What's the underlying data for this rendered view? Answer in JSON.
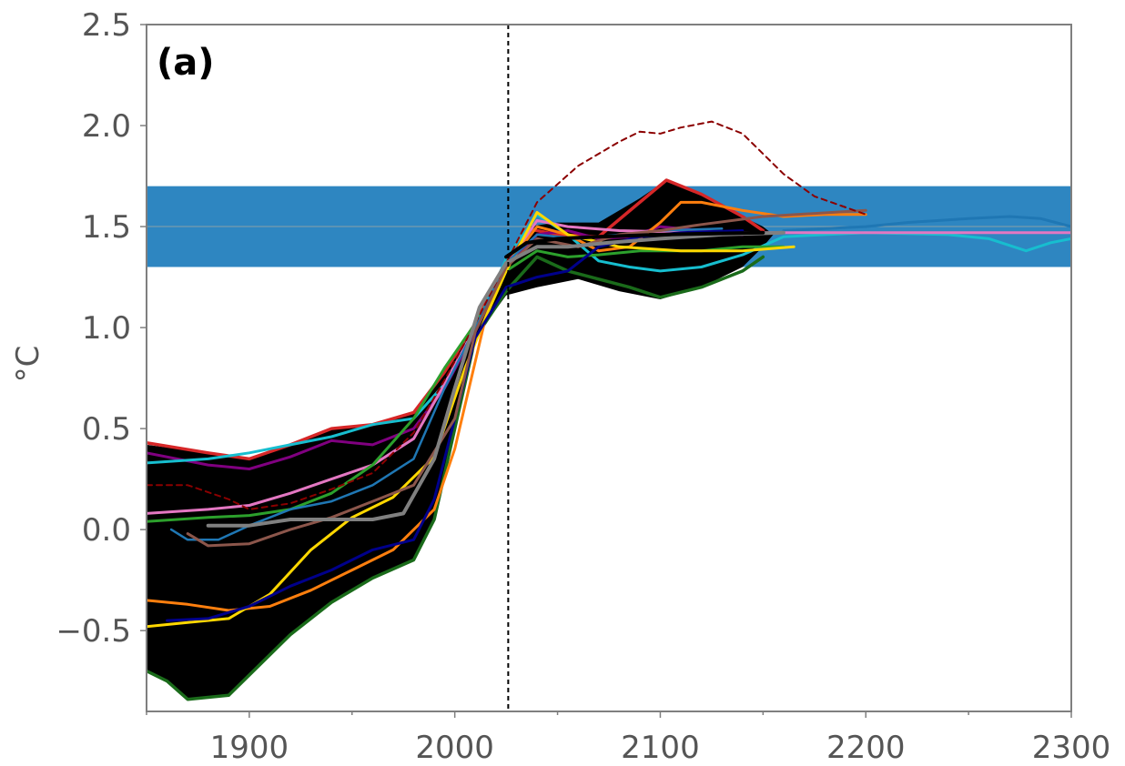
{
  "chart_data": {
    "type": "line",
    "panel_label": "(a)",
    "ylabel": "°C",
    "xlabel": "",
    "right_axis_fragment": "°C",
    "xlim": [
      1850,
      2300
    ],
    "ylim": [
      -0.9,
      2.5
    ],
    "x_ticks": [
      1900,
      2000,
      2100,
      2200,
      2300
    ],
    "x_tick_labels": [
      "1900",
      "2000",
      "2100",
      "2200",
      "2300"
    ],
    "y_ticks": [
      -0.5,
      0.0,
      0.5,
      1.0,
      1.5,
      2.0,
      2.5
    ],
    "y_tick_labels": [
      "−0.5",
      "0.0",
      "0.5",
      "1.0",
      "1.5",
      "2.0",
      "2.5"
    ],
    "grid": false,
    "target_band": {
      "ymin": 1.3,
      "ymax": 1.7,
      "center": 1.5,
      "color": "#2e86c1"
    },
    "vertical_marker_x": 2026,
    "envelope": {
      "color": "#000000",
      "upper": [
        [
          1850,
          0.42
        ],
        [
          1880,
          0.38
        ],
        [
          1900,
          0.35
        ],
        [
          1920,
          0.42
        ],
        [
          1940,
          0.5
        ],
        [
          1960,
          0.52
        ],
        [
          1980,
          0.58
        ],
        [
          1995,
          0.78
        ],
        [
          2010,
          1.02
        ],
        [
          2025,
          1.32
        ],
        [
          2035,
          1.5
        ],
        [
          2050,
          1.52
        ],
        [
          2070,
          1.52
        ],
        [
          2090,
          1.64
        ],
        [
          2103,
          1.73
        ],
        [
          2120,
          1.66
        ],
        [
          2140,
          1.55
        ],
        [
          2150,
          1.5
        ],
        [
          2155,
          1.46
        ]
      ],
      "lower": [
        [
          1850,
          -0.7
        ],
        [
          1860,
          -0.75
        ],
        [
          1870,
          -0.84
        ],
        [
          1890,
          -0.82
        ],
        [
          1900,
          -0.72
        ],
        [
          1920,
          -0.52
        ],
        [
          1940,
          -0.36
        ],
        [
          1960,
          -0.24
        ],
        [
          1980,
          -0.15
        ],
        [
          1990,
          0.05
        ],
        [
          2000,
          0.5
        ],
        [
          2010,
          0.95
        ],
        [
          2025,
          1.16
        ],
        [
          2040,
          1.2
        ],
        [
          2060,
          1.24
        ],
        [
          2080,
          1.18
        ],
        [
          2100,
          1.14
        ],
        [
          2120,
          1.2
        ],
        [
          2140,
          1.3
        ],
        [
          2150,
          1.4
        ],
        [
          2155,
          1.46
        ]
      ]
    },
    "series": [
      {
        "color": "#d62728",
        "width": 3.5,
        "points": [
          [
            1850,
            0.43
          ],
          [
            1880,
            0.38
          ],
          [
            1900,
            0.35
          ],
          [
            1920,
            0.42
          ],
          [
            1940,
            0.5
          ],
          [
            1960,
            0.52
          ],
          [
            1980,
            0.58
          ],
          [
            1995,
            0.78
          ],
          [
            2010,
            1.02
          ],
          [
            2025,
            1.32
          ],
          [
            2035,
            1.49
          ],
          [
            2050,
            1.46
          ],
          [
            2070,
            1.45
          ],
          [
            2090,
            1.62
          ],
          [
            2103,
            1.73
          ],
          [
            2120,
            1.66
          ],
          [
            2140,
            1.55
          ],
          [
            2150,
            1.48
          ]
        ]
      },
      {
        "color": "#1a6b1a",
        "width": 3.5,
        "points": [
          [
            1850,
            -0.7
          ],
          [
            1860,
            -0.75
          ],
          [
            1870,
            -0.84
          ],
          [
            1890,
            -0.82
          ],
          [
            1900,
            -0.72
          ],
          [
            1920,
            -0.52
          ],
          [
            1940,
            -0.36
          ],
          [
            1960,
            -0.24
          ],
          [
            1980,
            -0.15
          ],
          [
            1990,
            0.05
          ],
          [
            2000,
            0.5
          ],
          [
            2010,
            0.95
          ],
          [
            2025,
            1.18
          ],
          [
            2040,
            1.35
          ],
          [
            2055,
            1.28
          ],
          [
            2070,
            1.24
          ],
          [
            2085,
            1.2
          ],
          [
            2100,
            1.15
          ],
          [
            2120,
            1.2
          ],
          [
            2140,
            1.28
          ],
          [
            2150,
            1.35
          ]
        ]
      },
      {
        "color": "#800080",
        "width": 3,
        "points": [
          [
            1850,
            0.38
          ],
          [
            1880,
            0.32
          ],
          [
            1900,
            0.3
          ],
          [
            1920,
            0.36
          ],
          [
            1940,
            0.44
          ],
          [
            1960,
            0.42
          ],
          [
            1980,
            0.5
          ],
          [
            1995,
            0.7
          ],
          [
            2010,
            0.98
          ],
          [
            2025,
            1.3
          ],
          [
            2040,
            1.46
          ],
          [
            2055,
            1.48
          ],
          [
            2070,
            1.44
          ],
          [
            2085,
            1.45
          ],
          [
            2100,
            1.5
          ],
          [
            2120,
            1.48
          ],
          [
            2140,
            1.46
          ]
        ]
      },
      {
        "color": "#17becf",
        "width": 3,
        "points": [
          [
            1850,
            0.33
          ],
          [
            1880,
            0.35
          ],
          [
            1900,
            0.38
          ],
          [
            1920,
            0.42
          ],
          [
            1940,
            0.46
          ],
          [
            1960,
            0.52
          ],
          [
            1980,
            0.55
          ],
          [
            1995,
            0.72
          ],
          [
            2010,
            1.0
          ],
          [
            2025,
            1.34
          ],
          [
            2040,
            1.56
          ],
          [
            2055,
            1.46
          ],
          [
            2070,
            1.33
          ],
          [
            2085,
            1.3
          ],
          [
            2100,
            1.28
          ],
          [
            2120,
            1.3
          ],
          [
            2140,
            1.36
          ],
          [
            2160,
            1.45
          ],
          [
            2200,
            1.47
          ],
          [
            2240,
            1.46
          ],
          [
            2260,
            1.44
          ],
          [
            2278,
            1.38
          ],
          [
            2290,
            1.42
          ],
          [
            2300,
            1.44
          ]
        ]
      },
      {
        "color": "#1f77b4",
        "width": 3,
        "points": [
          [
            2160,
            1.48
          ],
          [
            2200,
            1.5
          ],
          [
            2220,
            1.52
          ],
          [
            2250,
            1.54
          ],
          [
            2270,
            1.55
          ],
          [
            2285,
            1.54
          ],
          [
            2300,
            1.5
          ]
        ]
      },
      {
        "color": "#e377c2",
        "width": 3,
        "points": [
          [
            1850,
            0.08
          ],
          [
            1880,
            0.1
          ],
          [
            1900,
            0.12
          ],
          [
            1920,
            0.18
          ],
          [
            1940,
            0.25
          ],
          [
            1960,
            0.32
          ],
          [
            1980,
            0.45
          ],
          [
            1995,
            0.72
          ],
          [
            2010,
            1.0
          ],
          [
            2025,
            1.3
          ],
          [
            2040,
            1.53
          ],
          [
            2055,
            1.5
          ],
          [
            2080,
            1.48
          ],
          [
            2120,
            1.47
          ],
          [
            2160,
            1.47
          ],
          [
            2200,
            1.47
          ],
          [
            2250,
            1.47
          ],
          [
            2300,
            1.47
          ]
        ]
      },
      {
        "color": "#2ca02c",
        "width": 3,
        "points": [
          [
            1850,
            0.04
          ],
          [
            1880,
            0.06
          ],
          [
            1900,
            0.07
          ],
          [
            1920,
            0.1
          ],
          [
            1940,
            0.18
          ],
          [
            1960,
            0.32
          ],
          [
            1980,
            0.55
          ],
          [
            1995,
            0.8
          ],
          [
            2010,
            1.02
          ],
          [
            2025,
            1.28
          ],
          [
            2040,
            1.38
          ],
          [
            2055,
            1.35
          ],
          [
            2070,
            1.36
          ],
          [
            2090,
            1.38
          ],
          [
            2120,
            1.38
          ],
          [
            2140,
            1.4
          ],
          [
            2160,
            1.4
          ]
        ]
      },
      {
        "color": "#ff7f0e",
        "width": 3,
        "points": [
          [
            1850,
            -0.35
          ],
          [
            1870,
            -0.37
          ],
          [
            1890,
            -0.4
          ],
          [
            1910,
            -0.38
          ],
          [
            1930,
            -0.3
          ],
          [
            1950,
            -0.2
          ],
          [
            1970,
            -0.1
          ],
          [
            1990,
            0.1
          ],
          [
            2000,
            0.4
          ],
          [
            2015,
            1.05
          ],
          [
            2025,
            1.3
          ],
          [
            2040,
            1.5
          ],
          [
            2055,
            1.46
          ],
          [
            2070,
            1.38
          ],
          [
            2085,
            1.4
          ],
          [
            2100,
            1.52
          ],
          [
            2110,
            1.62
          ],
          [
            2120,
            1.62
          ],
          [
            2140,
            1.58
          ],
          [
            2160,
            1.55
          ],
          [
            2180,
            1.56
          ],
          [
            2200,
            1.56
          ]
        ]
      },
      {
        "color": "#ffd700",
        "width": 3,
        "points": [
          [
            1850,
            -0.48
          ],
          [
            1870,
            -0.46
          ],
          [
            1890,
            -0.44
          ],
          [
            1910,
            -0.32
          ],
          [
            1930,
            -0.1
          ],
          [
            1950,
            0.06
          ],
          [
            1970,
            0.16
          ],
          [
            1990,
            0.36
          ],
          [
            2005,
            0.8
          ],
          [
            2015,
            1.05
          ],
          [
            2025,
            1.28
          ],
          [
            2040,
            1.57
          ],
          [
            2055,
            1.46
          ],
          [
            2080,
            1.4
          ],
          [
            2110,
            1.38
          ],
          [
            2140,
            1.38
          ],
          [
            2165,
            1.4
          ]
        ]
      },
      {
        "color": "#00008b",
        "width": 3,
        "points": [
          [
            1860,
            -0.45
          ],
          [
            1880,
            -0.44
          ],
          [
            1900,
            -0.38
          ],
          [
            1920,
            -0.28
          ],
          [
            1940,
            -0.2
          ],
          [
            1960,
            -0.1
          ],
          [
            1980,
            -0.05
          ],
          [
            1990,
            0.15
          ],
          [
            2000,
            0.55
          ],
          [
            2010,
            0.95
          ],
          [
            2025,
            1.2
          ],
          [
            2040,
            1.25
          ],
          [
            2055,
            1.28
          ],
          [
            2070,
            1.4
          ],
          [
            2090,
            1.45
          ],
          [
            2110,
            1.47
          ],
          [
            2140,
            1.48
          ]
        ]
      },
      {
        "color": "#1f77b4",
        "width": 2.5,
        "points": [
          [
            1862,
            0.0
          ],
          [
            1870,
            -0.05
          ],
          [
            1885,
            -0.05
          ],
          [
            1900,
            0.02
          ],
          [
            1920,
            0.1
          ],
          [
            1940,
            0.14
          ],
          [
            1960,
            0.22
          ],
          [
            1980,
            0.35
          ],
          [
            1995,
            0.7
          ],
          [
            2010,
            1.0
          ],
          [
            2025,
            1.32
          ],
          [
            2040,
            1.46
          ],
          [
            2060,
            1.44
          ],
          [
            2080,
            1.46
          ],
          [
            2100,
            1.48
          ],
          [
            2130,
            1.49
          ]
        ]
      },
      {
        "color": "#8c564b",
        "width": 3,
        "points": [
          [
            1870,
            -0.02
          ],
          [
            1880,
            -0.08
          ],
          [
            1900,
            -0.07
          ],
          [
            1920,
            0.0
          ],
          [
            1940,
            0.06
          ],
          [
            1960,
            0.14
          ],
          [
            1980,
            0.22
          ],
          [
            2000,
            0.55
          ],
          [
            2010,
            0.98
          ],
          [
            2025,
            1.3
          ],
          [
            2040,
            1.44
          ],
          [
            2060,
            1.4
          ],
          [
            2080,
            1.46
          ],
          [
            2100,
            1.48
          ],
          [
            2120,
            1.51
          ],
          [
            2150,
            1.55
          ],
          [
            2200,
            1.58
          ]
        ]
      },
      {
        "color": "#8b0000",
        "width": 2,
        "dashed": true,
        "points": [
          [
            1850,
            0.22
          ],
          [
            1870,
            0.22
          ],
          [
            1890,
            0.15
          ],
          [
            1900,
            0.1
          ],
          [
            1920,
            0.13
          ],
          [
            1940,
            0.2
          ],
          [
            1960,
            0.28
          ],
          [
            1980,
            0.48
          ],
          [
            1995,
            0.74
          ],
          [
            2010,
            1.02
          ],
          [
            2025,
            1.32
          ],
          [
            2040,
            1.62
          ],
          [
            2060,
            1.8
          ],
          [
            2080,
            1.92
          ],
          [
            2090,
            1.97
          ],
          [
            2100,
            1.96
          ],
          [
            2110,
            1.99
          ],
          [
            2125,
            2.02
          ],
          [
            2140,
            1.96
          ],
          [
            2160,
            1.76
          ],
          [
            2175,
            1.65
          ],
          [
            2200,
            1.56
          ]
        ]
      },
      {
        "color": "#808080",
        "width": 4,
        "points": [
          [
            1880,
            0.02
          ],
          [
            1900,
            0.02
          ],
          [
            1920,
            0.05
          ],
          [
            1940,
            0.05
          ],
          [
            1960,
            0.05
          ],
          [
            1975,
            0.08
          ],
          [
            1990,
            0.35
          ],
          [
            2000,
            0.7
          ],
          [
            2012,
            1.1
          ],
          [
            2025,
            1.32
          ],
          [
            2040,
            1.4
          ],
          [
            2055,
            1.4
          ],
          [
            2075,
            1.42
          ],
          [
            2100,
            1.44
          ],
          [
            2130,
            1.46
          ],
          [
            2160,
            1.47
          ]
        ]
      },
      {
        "color": "#000000",
        "width": 4,
        "points": [
          [
            2025,
            1.35
          ],
          [
            2035,
            1.42
          ],
          [
            2050,
            1.44
          ],
          [
            2070,
            1.45
          ],
          [
            2100,
            1.46
          ],
          [
            2150,
            1.47
          ]
        ]
      }
    ]
  }
}
